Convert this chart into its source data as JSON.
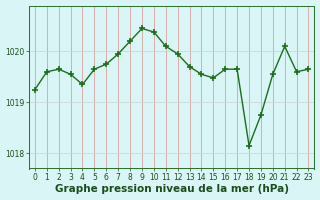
{
  "x": [
    0,
    1,
    2,
    3,
    4,
    5,
    6,
    7,
    8,
    9,
    10,
    11,
    12,
    13,
    14,
    15,
    16,
    17,
    18,
    19,
    20,
    21,
    22,
    23
  ],
  "y": [
    1019.25,
    1019.6,
    1019.65,
    1019.55,
    1019.35,
    1019.65,
    1019.75,
    1019.95,
    1020.2,
    1020.45,
    1020.38,
    1020.1,
    1019.95,
    1019.7,
    1019.55,
    1019.48,
    1019.65,
    1019.65,
    1018.15,
    1018.75,
    1019.55,
    1020.1,
    1019.6,
    1019.65
  ],
  "line_color": "#1a6e1a",
  "marker": "+",
  "markersize": 4,
  "markeredgewidth": 1.2,
  "linewidth": 1.0,
  "background_color": "#d9f5f5",
  "xlabel": "Graphe pression niveau de la mer (hPa)",
  "xlabel_fontsize": 7.5,
  "xlabel_fontweight": "bold",
  "xlabel_color": "#1a4e1a",
  "yticks": [
    1018,
    1019,
    1020
  ],
  "xticks": [
    0,
    1,
    2,
    3,
    4,
    5,
    6,
    7,
    8,
    9,
    10,
    11,
    12,
    13,
    14,
    15,
    16,
    17,
    18,
    19,
    20,
    21,
    22,
    23
  ],
  "ylim": [
    1017.7,
    1020.9
  ],
  "xlim": [
    -0.5,
    23.5
  ],
  "tick_fontsize": 5.5,
  "tick_color": "#1a4e1a",
  "grid_x_color": "#d8a0a0",
  "grid_y_color": "#c8d8d8",
  "spine_color": "#2a6e2a"
}
